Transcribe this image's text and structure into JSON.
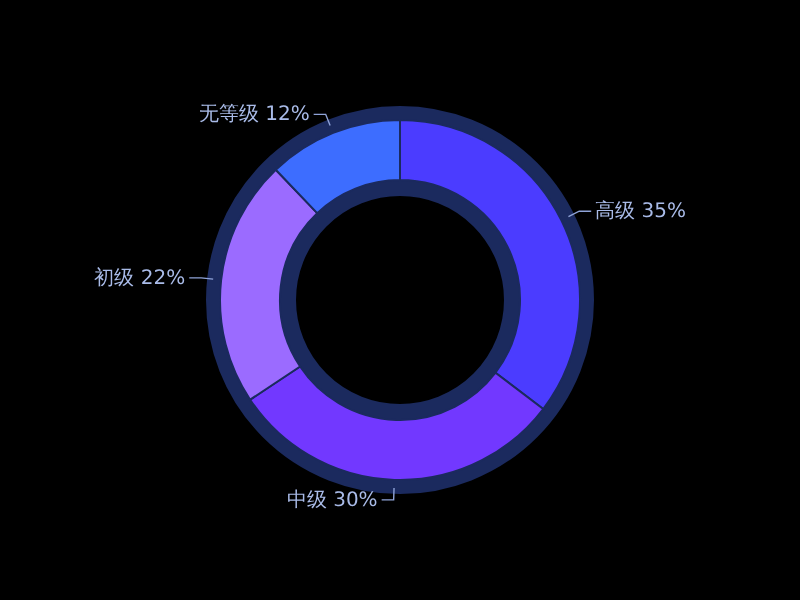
{
  "chart_data": {
    "type": "donut",
    "categories": [
      "高级",
      "中级",
      "初级",
      "无等级"
    ],
    "values": [
      35,
      30,
      22,
      12
    ],
    "value_labels": [
      "35%",
      "30%",
      "22%",
      "12%"
    ],
    "colors": [
      "#4b3cff",
      "#7238ff",
      "#9b6bff",
      "#3d6dff"
    ]
  }
}
